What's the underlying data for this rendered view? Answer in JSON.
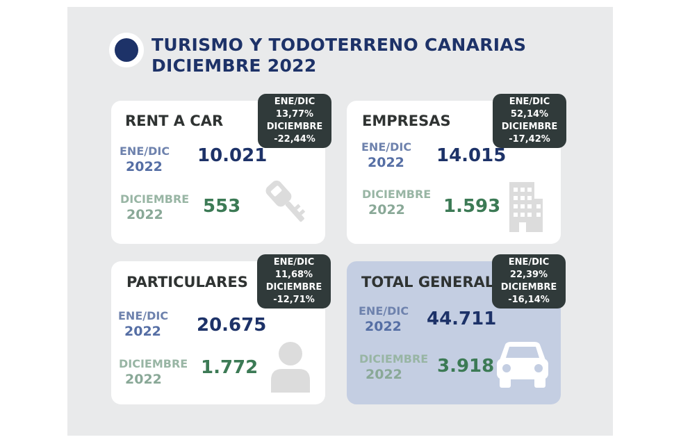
{
  "header": {
    "title_line1": "TURISMO Y TODOTERRENO CANARIAS",
    "title_line2": "DICIEMBRE 2022"
  },
  "cards": [
    {
      "title": "RENT A CAR",
      "period1_l1": "ENE/DIC",
      "period1_l2": "2022",
      "value1": "10.021",
      "period2_l1": "DICIEMBRE",
      "period2_l2": "2022",
      "value2": "553",
      "badge": {
        "l1": "ENE/DIC",
        "l2": "13,77%",
        "l3": "DICIEMBRE",
        "l4": "-22,44%"
      },
      "icon": "car-key-icon"
    },
    {
      "title": "EMPRESAS",
      "period1_l1": "ENE/DIC",
      "period1_l2": "2022",
      "value1": "14.015",
      "period2_l1": "DICIEMBRE",
      "period2_l2": "2022",
      "value2": "1.593",
      "badge": {
        "l1": "ENE/DIC",
        "l2": "52,14%",
        "l3": "DICIEMBRE",
        "l4": "-17,42%"
      },
      "icon": "building-icon"
    },
    {
      "title": "PARTICULARES",
      "period1_l1": "ENE/DIC",
      "period1_l2": "2022",
      "value1": "20.675",
      "period2_l1": "DICIEMBRE",
      "period2_l2": "2022",
      "value2": "1.772",
      "badge": {
        "l1": "ENE/DIC",
        "l2": "11,68%",
        "l3": "DICIEMBRE",
        "l4": "-12,71%"
      },
      "icon": "person-icon"
    },
    {
      "title": "TOTAL GENERAL",
      "period1_l1": "ENE/DIC",
      "period1_l2": "2022",
      "value1": "44.711",
      "period2_l1": "DICIEMBRE",
      "period2_l2": "2022",
      "value2": "3.918",
      "badge": {
        "l1": "ENE/DIC",
        "l2": "22,39%",
        "l3": "DICIEMBRE",
        "l4": "-16,14%"
      },
      "icon": "car-icon"
    }
  ],
  "colors": {
    "navy": "#1d3268",
    "green": "#3c7a55",
    "badge_bg": "#303a3a",
    "panel_bg": "#e9eaeb",
    "total_card_bg": "#c4cee2"
  }
}
